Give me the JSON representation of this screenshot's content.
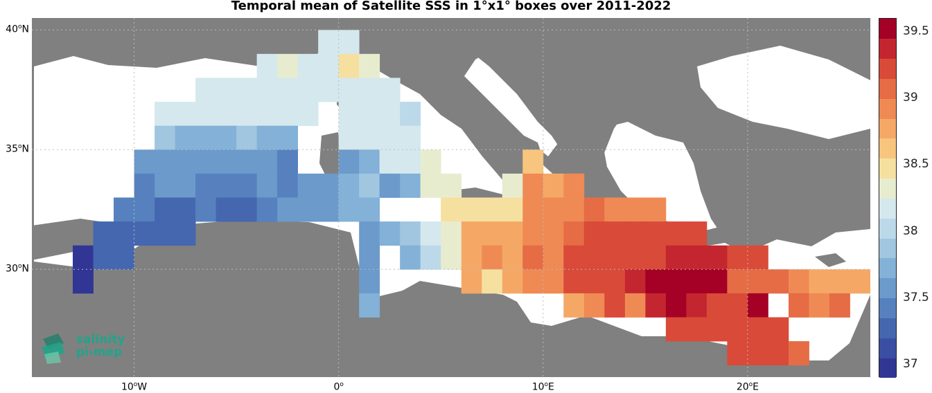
{
  "title": "Temporal mean of Satellite SSS in 1°x1° boxes over 2011-2022",
  "map": {
    "lon_range": [
      -15,
      26
    ],
    "lat_range": [
      25.5,
      40.5
    ],
    "lat_labels": [
      {
        "lat": 40,
        "deg": "40",
        "hem": "N"
      },
      {
        "lat": 35,
        "deg": "35",
        "hem": "N"
      },
      {
        "lat": 30,
        "deg": "30",
        "hem": "N"
      }
    ],
    "lon_labels": [
      {
        "lon": -10,
        "deg": "10",
        "hem": "W"
      },
      {
        "lon": 0,
        "deg": "0",
        "hem": ""
      },
      {
        "lon": 10,
        "deg": "10",
        "hem": "E"
      },
      {
        "lon": 20,
        "deg": "20",
        "hem": "E"
      }
    ],
    "land_color": "#808080",
    "sea_color": "#ffffff"
  },
  "colorbar": {
    "vmin": 36.9,
    "vmax": 39.6,
    "levels": 18,
    "ticks": [
      "37",
      "37.5",
      "38",
      "38.5",
      "39",
      "39.5"
    ],
    "colors": [
      "#313695",
      "#3a4fa3",
      "#4567b0",
      "#5681be",
      "#6b9acb",
      "#83b1d7",
      "#a0c6e0",
      "#bcd9e9",
      "#d5e8ee",
      "#e8eccf",
      "#f6e0a0",
      "#f8c57e",
      "#f5a866",
      "#ef8a54",
      "#e56c45",
      "#d94a38",
      "#c4262f",
      "#a50026"
    ]
  },
  "chart_data": {
    "type": "heatmap",
    "title": "Temporal mean of Satellite SSS in 1°x1° boxes over 2011-2022",
    "xlabel": "",
    "ylabel": "",
    "x_range": [
      -15,
      26
    ],
    "y_range": [
      25.5,
      40.5
    ],
    "colorbar_range": [
      36.9,
      39.6
    ],
    "cells": [
      [
        -1,
        39,
        38.2
      ],
      [
        0,
        39,
        38.1
      ],
      [
        -4,
        38,
        38.1
      ],
      [
        -3,
        38,
        38.3
      ],
      [
        -2,
        38,
        38.2
      ],
      [
        -1,
        38,
        38.1
      ],
      [
        0,
        38,
        38.5
      ],
      [
        1,
        38,
        38.3
      ],
      [
        -7,
        37,
        38.1
      ],
      [
        -6,
        37,
        38.1
      ],
      [
        -5,
        37,
        38.2
      ],
      [
        -4,
        37,
        38.2
      ],
      [
        -3,
        37,
        38.1
      ],
      [
        -2,
        37,
        38.1
      ],
      [
        -1,
        37,
        38.1
      ],
      [
        0,
        37,
        38.1
      ],
      [
        1,
        37,
        38.1
      ],
      [
        2,
        37,
        38.1
      ],
      [
        -9,
        36,
        38.1
      ],
      [
        -8,
        36,
        38.1
      ],
      [
        -7,
        36,
        38.1
      ],
      [
        -6,
        36,
        38.1
      ],
      [
        -5,
        36,
        38.1
      ],
      [
        -4,
        36,
        38.1
      ],
      [
        -3,
        36,
        38.1
      ],
      [
        -2,
        36,
        38.1
      ],
      [
        0,
        36,
        38.1
      ],
      [
        1,
        36,
        38.1
      ],
      [
        2,
        36,
        38.1
      ],
      [
        3,
        36,
        38.0
      ],
      [
        -9,
        35,
        37.9
      ],
      [
        -8,
        35,
        37.8
      ],
      [
        -7,
        35,
        37.8
      ],
      [
        -6,
        35,
        37.8
      ],
      [
        -5,
        35,
        37.9
      ],
      [
        -4,
        35,
        37.8
      ],
      [
        -3,
        35,
        37.8
      ],
      [
        0,
        35,
        38.1
      ],
      [
        1,
        35,
        38.1
      ],
      [
        2,
        35,
        38.1
      ],
      [
        3,
        35,
        38.1
      ],
      [
        -10,
        34,
        37.6
      ],
      [
        -9,
        34,
        37.6
      ],
      [
        -8,
        34,
        37.5
      ],
      [
        -7,
        34,
        37.6
      ],
      [
        -6,
        34,
        37.6
      ],
      [
        -5,
        34,
        37.5
      ],
      [
        -4,
        34,
        37.5
      ],
      [
        -3,
        34,
        37.4
      ],
      [
        0,
        34,
        37.6
      ],
      [
        1,
        34,
        37.7
      ],
      [
        2,
        34,
        38.1
      ],
      [
        3,
        34,
        38.1
      ],
      [
        4,
        34,
        38.3
      ],
      [
        9,
        34,
        38.6
      ],
      [
        -10,
        33,
        37.4
      ],
      [
        -9,
        33,
        37.5
      ],
      [
        -8,
        33,
        37.5
      ],
      [
        -7,
        33,
        37.4
      ],
      [
        -6,
        33,
        37.4
      ],
      [
        -5,
        33,
        37.4
      ],
      [
        -4,
        33,
        37.5
      ],
      [
        -3,
        33,
        37.4
      ],
      [
        -2,
        33,
        37.5
      ],
      [
        -1,
        33,
        37.6
      ],
      [
        0,
        33,
        37.7
      ],
      [
        1,
        33,
        37.9
      ],
      [
        2,
        33,
        37.6
      ],
      [
        3,
        33,
        37.8
      ],
      [
        4,
        33,
        38.3
      ],
      [
        5,
        33,
        38.3
      ],
      [
        8,
        33,
        38.3
      ],
      [
        9,
        33,
        39.0
      ],
      [
        10,
        33,
        38.8
      ],
      [
        11,
        33,
        38.9
      ],
      [
        -11,
        32,
        37.4
      ],
      [
        -10,
        32,
        37.4
      ],
      [
        -9,
        32,
        37.3
      ],
      [
        -8,
        32,
        37.3
      ],
      [
        -7,
        32,
        37.4
      ],
      [
        -6,
        32,
        37.3
      ],
      [
        -5,
        32,
        37.3
      ],
      [
        -4,
        32,
        37.4
      ],
      [
        -3,
        32,
        37.5
      ],
      [
        -2,
        32,
        37.6
      ],
      [
        -1,
        32,
        37.6
      ],
      [
        0,
        32,
        37.7
      ],
      [
        1,
        32,
        37.8
      ],
      [
        5,
        32,
        38.5
      ],
      [
        6,
        32,
        38.5
      ],
      [
        7,
        32,
        38.5
      ],
      [
        8,
        32,
        38.5
      ],
      [
        9,
        32,
        38.9
      ],
      [
        10,
        32,
        38.9
      ],
      [
        11,
        32,
        38.9
      ],
      [
        12,
        32,
        39.1
      ],
      [
        13,
        32,
        39.0
      ],
      [
        14,
        32,
        39.0
      ],
      [
        15,
        32,
        39.0
      ],
      [
        -12,
        31,
        37.2
      ],
      [
        -11,
        31,
        37.3
      ],
      [
        -10,
        31,
        37.3
      ],
      [
        -9,
        31,
        37.3
      ],
      [
        -8,
        31,
        37.3
      ],
      [
        1,
        31,
        37.5
      ],
      [
        2,
        31,
        37.8
      ],
      [
        3,
        31,
        37.9
      ],
      [
        4,
        31,
        38.1
      ],
      [
        5,
        31,
        38.4
      ],
      [
        6,
        31,
        38.7
      ],
      [
        7,
        31,
        38.8
      ],
      [
        8,
        31,
        38.8
      ],
      [
        9,
        31,
        38.9
      ],
      [
        10,
        31,
        38.9
      ],
      [
        11,
        31,
        39.1
      ],
      [
        12,
        31,
        39.2
      ],
      [
        13,
        31,
        39.2
      ],
      [
        14,
        31,
        39.2
      ],
      [
        15,
        31,
        39.2
      ],
      [
        16,
        31,
        39.3
      ],
      [
        17,
        31,
        39.2
      ],
      [
        -13,
        30,
        37.0
      ],
      [
        -12,
        30,
        37.2
      ],
      [
        -11,
        30,
        37.3
      ],
      [
        1,
        30,
        37.5
      ],
      [
        3,
        30,
        37.7
      ],
      [
        4,
        30,
        38.0
      ],
      [
        5,
        30,
        38.3
      ],
      [
        6,
        30,
        38.8
      ],
      [
        7,
        30,
        38.9
      ],
      [
        8,
        30,
        38.8
      ],
      [
        9,
        30,
        39.1
      ],
      [
        10,
        30,
        39.0
      ],
      [
        11,
        30,
        39.3
      ],
      [
        12,
        30,
        39.3
      ],
      [
        13,
        30,
        39.3
      ],
      [
        14,
        30,
        39.2
      ],
      [
        15,
        30,
        39.3
      ],
      [
        16,
        30,
        39.4
      ],
      [
        17,
        30,
        39.4
      ],
      [
        18,
        30,
        39.4
      ],
      [
        19,
        30,
        39.2
      ],
      [
        20,
        30,
        39.2
      ],
      [
        -13,
        29,
        37.0
      ],
      [
        1,
        29,
        37.6
      ],
      [
        6,
        29,
        38.7
      ],
      [
        7,
        29,
        38.5
      ],
      [
        8,
        29,
        38.7
      ],
      [
        9,
        29,
        39.0
      ],
      [
        10,
        29,
        39.0
      ],
      [
        11,
        29,
        39.3
      ],
      [
        12,
        29,
        39.3
      ],
      [
        13,
        29,
        39.3
      ],
      [
        14,
        29,
        39.4
      ],
      [
        15,
        29,
        39.5
      ],
      [
        16,
        29,
        39.5
      ],
      [
        17,
        29,
        39.5
      ],
      [
        18,
        29,
        39.5
      ],
      [
        19,
        29,
        39.1
      ],
      [
        20,
        29,
        39.1
      ],
      [
        21,
        29,
        39.1
      ],
      [
        22,
        29,
        38.9
      ],
      [
        23,
        29,
        38.8
      ],
      [
        24,
        29,
        38.7
      ],
      [
        25,
        29,
        38.8
      ],
      [
        1,
        28,
        37.7
      ],
      [
        11,
        28,
        38.7
      ],
      [
        12,
        28,
        38.9
      ],
      [
        13,
        28,
        39.2
      ],
      [
        14,
        28,
        39.0
      ],
      [
        15,
        28,
        39.4
      ],
      [
        16,
        28,
        39.5
      ],
      [
        17,
        28,
        39.4
      ],
      [
        18,
        28,
        39.3
      ],
      [
        19,
        28,
        39.3
      ],
      [
        20,
        28,
        39.5
      ],
      [
        22,
        28,
        39.1
      ],
      [
        23,
        28,
        38.9
      ],
      [
        24,
        28,
        39.1
      ],
      [
        16,
        27,
        39.2
      ],
      [
        17,
        27,
        39.2
      ],
      [
        18,
        27,
        39.2
      ],
      [
        19,
        27,
        39.2
      ],
      [
        20,
        27,
        39.2
      ],
      [
        21,
        27,
        39.2
      ],
      [
        19,
        26,
        39.3
      ],
      [
        20,
        26,
        39.3
      ],
      [
        21,
        26,
        39.2
      ],
      [
        22,
        26,
        39.1
      ]
    ]
  },
  "logo": {
    "line1": "salinity",
    "line2": "pi-mep"
  }
}
